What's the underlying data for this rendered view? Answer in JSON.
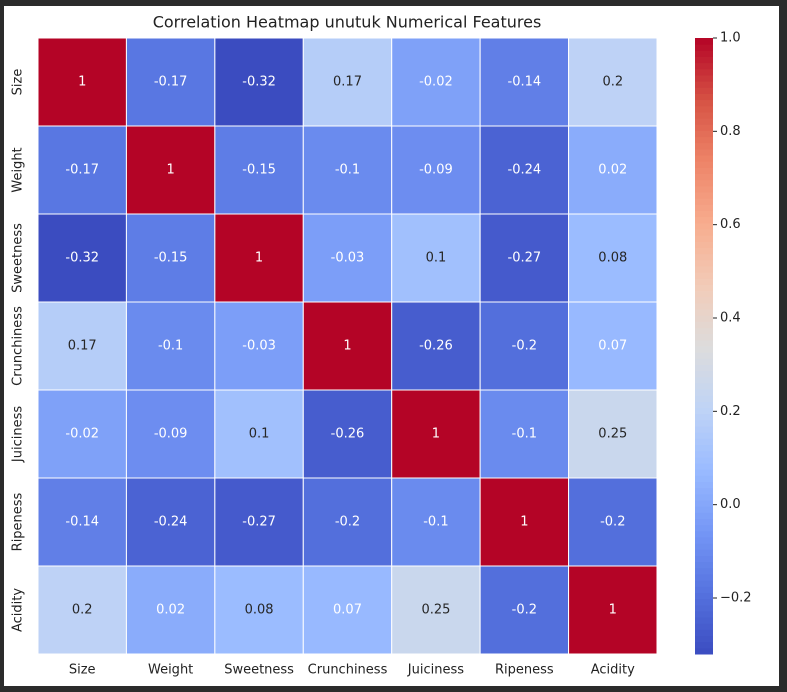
{
  "chart_data": {
    "type": "heatmap",
    "title": "Correlation Heatmap unutuk Numerical Features",
    "categories": [
      "Size",
      "Weight",
      "Sweetness",
      "Crunchiness",
      "Juiciness",
      "Ripeness",
      "Acidity"
    ],
    "rows": [
      "Size",
      "Weight",
      "Sweetness",
      "Crunchiness",
      "Juiciness",
      "Ripeness",
      "Acidity"
    ],
    "values": [
      [
        1,
        -0.17,
        -0.32,
        0.17,
        -0.02,
        -0.14,
        0.2
      ],
      [
        -0.17,
        1,
        -0.15,
        -0.1,
        -0.09,
        -0.24,
        0.02
      ],
      [
        -0.32,
        -0.15,
        1,
        -0.03,
        0.1,
        -0.27,
        0.08
      ],
      [
        0.17,
        -0.1,
        -0.03,
        1,
        -0.26,
        -0.2,
        0.07
      ],
      [
        -0.02,
        -0.09,
        0.1,
        -0.26,
        1,
        -0.1,
        0.25
      ],
      [
        -0.14,
        -0.24,
        -0.27,
        -0.2,
        -0.1,
        1,
        -0.2
      ],
      [
        0.2,
        0.02,
        0.08,
        0.07,
        0.25,
        -0.2,
        1
      ]
    ],
    "clim": [
      -0.32,
      1
    ],
    "cticks": [
      {
        "value": -0.2,
        "label": "−0.2"
      },
      {
        "value": 0,
        "label": "0.0"
      },
      0.2,
      0.4,
      0.6,
      0.8,
      {
        "value": 1,
        "label": "1.0"
      }
    ],
    "colormap": [
      "#3b4cc0",
      "#5572df",
      "#7597f6",
      "#9abbff",
      "#c0d4f5",
      "#dddcdc",
      "#f2cbb7",
      "#f7ac8e",
      "#ee8468",
      "#d65244",
      "#b40426"
    ]
  }
}
